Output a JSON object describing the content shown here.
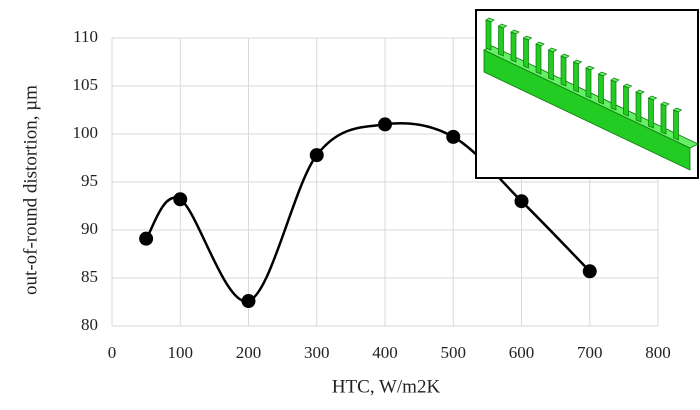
{
  "chart_data": {
    "type": "line",
    "x_label": "HTC, W/m2K",
    "y_label": "out-of-round distortion, µm",
    "x": [
      50,
      100,
      200,
      300,
      400,
      500,
      600,
      700
    ],
    "values": [
      89.1,
      93.2,
      82.6,
      97.8,
      101.0,
      99.7,
      93.0,
      85.7
    ],
    "color": "#000000",
    "xlim": [
      0,
      800
    ],
    "xticks": [
      0,
      100,
      200,
      300,
      400,
      500,
      600,
      700,
      800
    ],
    "ylim": [
      80,
      110
    ],
    "yticks": [
      80,
      85,
      90,
      95,
      100,
      105,
      110
    ],
    "grid": true,
    "smooth": true
  }
}
